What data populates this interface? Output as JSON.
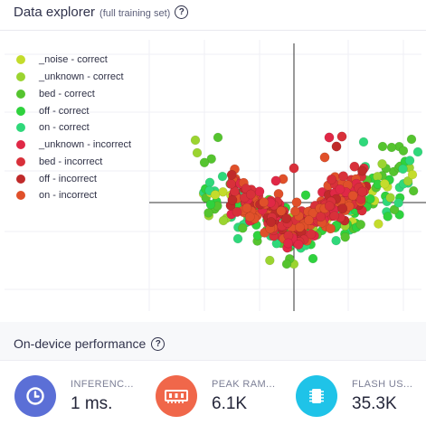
{
  "explorer": {
    "title": "Data explorer",
    "subtitle": "(full training set)",
    "help": "?",
    "legend": [
      {
        "label": "_noise - correct",
        "color": "#c4dc2c"
      },
      {
        "label": "_unknown - correct",
        "color": "#9bd430"
      },
      {
        "label": "bed - correct",
        "color": "#55c42f"
      },
      {
        "label": "off - correct",
        "color": "#2fd23e"
      },
      {
        "label": "on - correct",
        "color": "#2fd87a"
      },
      {
        "label": "_unknown - incorrect",
        "color": "#e02846"
      },
      {
        "label": "bed - incorrect",
        "color": "#d8303a"
      },
      {
        "label": "off - incorrect",
        "color": "#c02a2a"
      },
      {
        "label": "on - incorrect",
        "color": "#e0502a"
      }
    ]
  },
  "performance": {
    "title": "On-device performance",
    "help": "?",
    "metrics": [
      {
        "label": "INFERENC...",
        "value": "1 ms.",
        "color": "#5b6fd6",
        "icon": "clock-icon"
      },
      {
        "label": "PEAK RAM...",
        "value": "6.1K",
        "color": "#f0674a",
        "icon": "ram-icon"
      },
      {
        "label": "FLASH US...",
        "value": "35.3K",
        "color": "#1fc3e8",
        "icon": "chip-icon"
      }
    ]
  }
}
